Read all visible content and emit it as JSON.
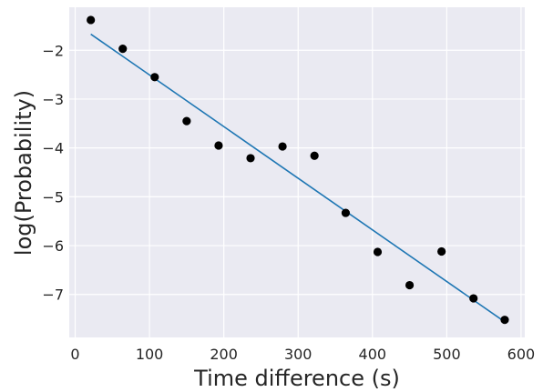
{
  "chart_data": {
    "type": "scatter",
    "title": "",
    "xlabel": "Time difference (s)",
    "ylabel": "log(Probability)",
    "xlim": [
      -8,
      605
    ],
    "ylim": [
      -7.88,
      -1.12
    ],
    "xticks": [
      0,
      100,
      200,
      300,
      400,
      500,
      600
    ],
    "yticks": [
      -2,
      -3,
      -4,
      -5,
      -6,
      -7
    ],
    "ytick_labels": [
      "−2",
      "−3",
      "−4",
      "−5",
      "−6",
      "−7"
    ],
    "grid": true,
    "background_color": "#eaeaf2",
    "point_color": "#000000",
    "line_color": "#1f77b4",
    "points": [
      {
        "x": 21,
        "y": -1.38
      },
      {
        "x": 64,
        "y": -1.97
      },
      {
        "x": 107,
        "y": -2.55
      },
      {
        "x": 150,
        "y": -3.45
      },
      {
        "x": 193,
        "y": -3.95
      },
      {
        "x": 236,
        "y": -4.21
      },
      {
        "x": 279,
        "y": -3.97
      },
      {
        "x": 322,
        "y": -4.16
      },
      {
        "x": 364,
        "y": -5.33
      },
      {
        "x": 407,
        "y": -6.13
      },
      {
        "x": 450,
        "y": -6.81
      },
      {
        "x": 493,
        "y": -6.12
      },
      {
        "x": 536,
        "y": -7.08
      },
      {
        "x": 578,
        "y": -7.52
      }
    ],
    "fit_line": {
      "x": [
        21,
        578
      ],
      "y": [
        -1.67,
        -7.56
      ]
    }
  }
}
